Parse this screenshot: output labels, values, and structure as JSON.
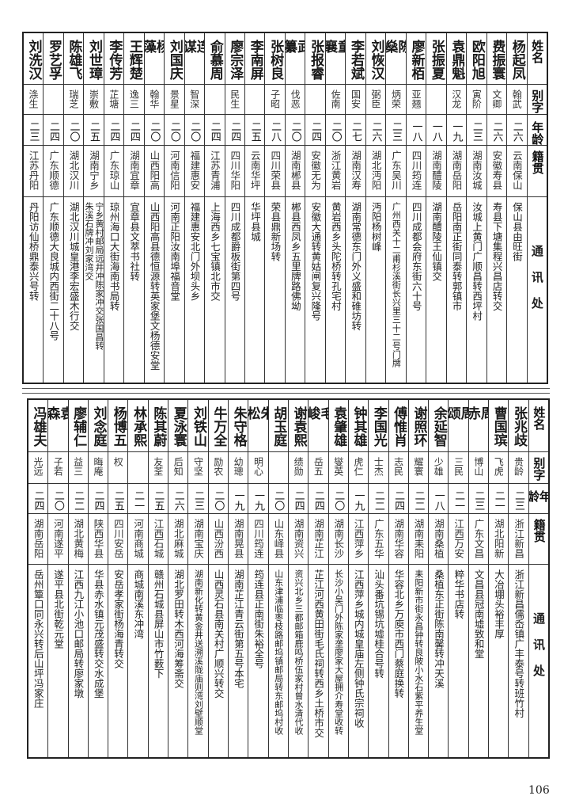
{
  "header": {
    "name": "姓名",
    "alias": "别字",
    "age": "年龄",
    "origin": "籍贯",
    "address": "通讯处"
  },
  "tables": [
    {
      "rows": [
        {
          "name": "杨起凤",
          "alias": "翰武",
          "age": "二六",
          "origin": "云南保山",
          "address": "保山县由旺街"
        },
        {
          "name": "费振寰",
          "alias": "文卿",
          "age": "二六",
          "origin": "安徽寿县",
          "address": "寿县下塘集程兴昌店转交"
        },
        {
          "name": "欧阳旭",
          "alias": "寅阶",
          "age": "二三",
          "origin": "湖南汝城",
          "address": "汝城上黄门广顺昌转西坪村"
        },
        {
          "name": "袁鼎魁",
          "alias": "汉龙",
          "age": "一九",
          "origin": "湖南岳阳",
          "address": "岳阳南正街同泰转郭镇市"
        },
        {
          "name": "张振夏",
          "alias": "",
          "age": "一八",
          "origin": "湖南醴陵",
          "address": "湖南醴陵王仙镇交"
        },
        {
          "name": "廖新栢",
          "alias": "亚翘",
          "age": "一八",
          "origin": "四川筠连",
          "address": "四川成都会府东街六十号"
        },
        {
          "name": "陈燊",
          "alias": "炳荣",
          "age": "二三",
          "origin": "广东吴川",
          "address": "广州西关十二甫杉溪街长兴里三十二号门牌"
        },
        {
          "name": "刘恢汉",
          "alias": "弼臣",
          "age": "二六",
          "origin": "湖北沔阳",
          "address": "沔阳杨树峰"
        },
        {
          "name": "李若斌",
          "alias": "国安",
          "age": "二七",
          "origin": "湖南汉寿",
          "address": "湖南常德东门外义盛和碓坊转"
        },
        {
          "name": "童襄",
          "alias": "佐南",
          "age": "二〇",
          "origin": "浙江黄岩",
          "address": "黄岩西乡头陀桥转孔宅村"
        },
        {
          "name": "张报睿",
          "alias": "",
          "age": "二四",
          "origin": "安徽无为",
          "address": "安徽大通转黄姑闸复兴隆号"
        },
        {
          "name": "武纂",
          "alias": "伐恶",
          "age": "二〇",
          "origin": "湖南郴县",
          "address": "郴县西凤乡五里牌路佛坳"
        },
        {
          "name": "张树良",
          "alias": "子昭",
          "age": "二八",
          "origin": "四川荣县",
          "address": "荣县鼎新场转"
        },
        {
          "name": "李南屏",
          "alias": "",
          "age": "二五",
          "origin": "云南华坪",
          "address": "华坪县城"
        },
        {
          "name": "廖宗泽",
          "alias": "民生",
          "age": "二四",
          "origin": "四川华阳",
          "address": "四川成都爵板街第四号"
        },
        {
          "name": "俞慕周",
          "alias": "",
          "age": "二四",
          "origin": "江苏青浦",
          "address": "上海西乡七宝镇北市交"
        },
        {
          "name": "连谋",
          "alias": "智深",
          "age": "二〇",
          "origin": "福建惠安",
          "address": "福建惠安北门外坝头乡"
        },
        {
          "name": "刘国庆",
          "alias": "景星",
          "age": "二〇",
          "origin": "河南信阳",
          "address": "河南正阳汝南埠福音堂"
        },
        {
          "name": "杨藻",
          "alias": "翰华",
          "age": "二〇",
          "origin": "山西阳高",
          "address": "山西阳高县德恒源转英家堡文杨德安堂"
        },
        {
          "name": "王辉楚",
          "alias": "逸三",
          "age": "二四",
          "origin": "湖南宜章",
          "address": "宜章县文萃书社转"
        },
        {
          "name": "李传芳",
          "alias": "芷塘",
          "age": "二四",
          "origin": "广东琼山",
          "address": "琼州海口大街海南书局转"
        },
        {
          "name": "刘世璋",
          "alias": "崇敷",
          "age": "二五",
          "origin": "湖南宁乡",
          "address": "宁乡黄村邮局远井冲陈家冲交张国昌转",
          "address_extra": "朱溪石牌冲刘家湾交"
        },
        {
          "name": "陈雄飞",
          "alias": "瑞芝",
          "age": "二〇",
          "origin": "湖北汉川",
          "address": "湖北汉川城皇港李宏盛木行交"
        },
        {
          "name": "罗艺孚",
          "alias": "",
          "age": "二四",
          "origin": "广东顺德",
          "address": "广东顺德大良城内西街二十八号"
        },
        {
          "name": "刘洗汉",
          "alias": "涤生",
          "age": "二三",
          "origin": "江苏丹阳",
          "address": "丹阳访仙桥鼎泰兴号转"
        }
      ]
    },
    {
      "rows": [
        {
          "name": "张兆歧",
          "alias": "贵龄",
          "age": "二三",
          "origin": "浙江新昌",
          "address": "浙江新昌儒岙镇广丰泰号转班竹村"
        },
        {
          "name": "曹国瑸",
          "alias": "飞虎",
          "age": "二一",
          "origin": "湖北阳新",
          "address": "大冶堋头裕丰厚"
        },
        {
          "name": "周赤",
          "alias": "博山",
          "age": "二三",
          "origin": "广东文昌",
          "address": "文昌县冠南墟致和堂"
        },
        {
          "name": "周颂",
          "alias": "三民",
          "age": "二一",
          "origin": "江西万安",
          "address": "粹华书店转"
        },
        {
          "name": "余延智",
          "alias": "少雄",
          "age": "一八",
          "origin": "湖南桑植",
          "address": "桑植东正街陈南馨转冲天溪"
        },
        {
          "name": "谢照环",
          "alias": "耀寰",
          "age": "二二",
          "origin": "湖南耒阳",
          "address": "耒阳新市街永昌钟转良陂小水石紫平养生堂"
        },
        {
          "name": "傅惟肖",
          "alias": "志民",
          "age": "二四",
          "origin": "湖南华容",
          "address": "华容北乡万庾市西门蔡庭换转"
        },
        {
          "name": "李国光",
          "alias": "士杰",
          "age": "二二",
          "origin": "广东五华",
          "address": "汕头番坑锡坑墟桂合号转"
        },
        {
          "name": "钟其雄",
          "alias": "虎仁",
          "age": "一九",
          "origin": "江西萍乡",
          "address": "江西萍乡城内城皇庙左侧钟氏宗祠收"
        },
        {
          "name": "袁肇雄",
          "alias": "燮英",
          "age": "二〇",
          "origin": "湖南长沙",
          "address": "长沙小吴门外陈家垄廖家大屋拥介寿堂收转"
        },
        {
          "name": "毛峻",
          "alias": "岳五",
          "age": "二四",
          "origin": "湖南芷江",
          "address": "芷江河西黄田街毛氏祠转西乡土桥市交"
        },
        {
          "name": "谢袁熙",
          "alias": "绩勋",
          "age": "二四",
          "origin": "湖南资兴",
          "address": "资兴北乡三都邮箱鹿鸣桥伍家村曾水清代收"
        },
        {
          "name": "胡玉庭",
          "alias": "",
          "age": "二〇",
          "origin": "山东峄县",
          "address": "山东津浦临枣枝路邮坞镇邮局转东邮坞村收"
        },
        {
          "name": "朱松",
          "alias": "明心",
          "age": "一九",
          "origin": "四川筠连",
          "address": "筠连县正南街朱裕全号"
        },
        {
          "name": "朱守格",
          "alias": "幼璁",
          "age": "一九",
          "origin": "湖南晃县",
          "address": "湖南芷江青云街第五号本宅"
        },
        {
          "name": "牛万全",
          "alias": "励农",
          "age": "二〇",
          "origin": "山西汾西",
          "address": "山西灵石县南关村广顺兴转交"
        },
        {
          "name": "刘铁山",
          "alias": "守坚",
          "age": "二三",
          "origin": "湖南宝庆",
          "address": "湖南新化转黄金井送溯溪陇庙则湾刘壁顺堂"
        },
        {
          "name": "夏泳寰",
          "alias": "后知",
          "age": "二六",
          "origin": "湖北麻城",
          "address": "湖北罗田转木西河海筹斋交"
        },
        {
          "name": "陈其蔚",
          "alias": "友荃",
          "age": "二五",
          "origin": "江西石城",
          "address": "赣州石城县屏山市竹薮下"
        },
        {
          "name": "林承熙",
          "alias": "",
          "age": "二一",
          "origin": "河南商城",
          "address": "商城南溪东冲湾"
        },
        {
          "name": "杨博五",
          "alias": "权",
          "age": "二五",
          "origin": "四川安岳",
          "address": "安岳孝家街杨海青转交"
        },
        {
          "name": "刘念庭",
          "alias": "晦庵",
          "age": "二四",
          "origin": "陕西华县",
          "address": "华县赤水镇元茂盛转交水成堡"
        },
        {
          "name": "廖辅仁",
          "alias": "益三",
          "age": "二二",
          "origin": "湖北黄梅",
          "address": "江西九江小池口邮局转廖家墩"
        },
        {
          "name": "袁森",
          "alias": "子若",
          "age": "二〇",
          "origin": "河南遂平",
          "address": "遂平县北街乾元堂"
        },
        {
          "name": "冯雄夫",
          "alias": "光远",
          "age": "二四",
          "origin": "湖南岳阳",
          "address": "岳州簟口同永兴转后山坪冯家庄"
        }
      ]
    }
  ],
  "page_number": "106"
}
